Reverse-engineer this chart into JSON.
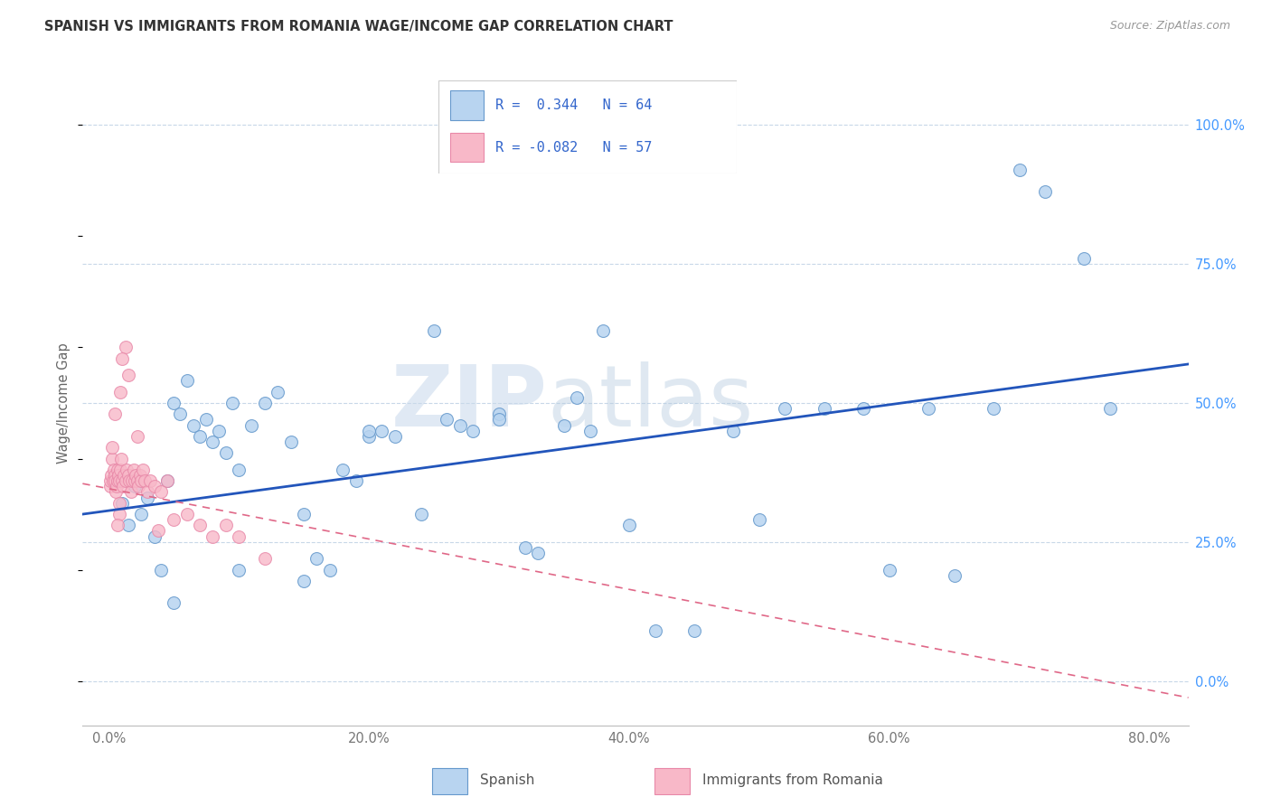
{
  "title": "SPANISH VS IMMIGRANTS FROM ROMANIA WAGE/INCOME GAP CORRELATION CHART",
  "source": "Source: ZipAtlas.com",
  "ylabel": "Wage/Income Gap",
  "watermark_zip": "ZIP",
  "watermark_atlas": "atlas",
  "blue_color_face": "#b8d4f0",
  "blue_color_edge": "#6699cc",
  "pink_color_face": "#f8b8c8",
  "pink_color_edge": "#e888a8",
  "blue_line_color": "#2255bb",
  "pink_line_color": "#e06888",
  "tick_color_right": "#4499ff",
  "tick_color_bottom": "#777777",
  "grid_color": "#c8d8e8",
  "title_color": "#333333",
  "source_color": "#999999",
  "ylabel_color": "#666666",
  "legend_border": "#cccccc",
  "legend_text_color": "#3366cc",
  "bottom_legend_text_color": "#555555",
  "blue_R": 0.344,
  "blue_N": 64,
  "pink_R": -0.082,
  "pink_N": 57,
  "xlim": [
    -2,
    83
  ],
  "ylim": [
    -8,
    108
  ],
  "x_ticks": [
    0,
    20,
    40,
    60,
    80
  ],
  "y_ticks": [
    0,
    25,
    50,
    75,
    100
  ],
  "blue_line_x0": -2,
  "blue_line_x1": 83,
  "blue_line_y0": 30.0,
  "blue_line_y1": 57.0,
  "pink_line_x0": -2,
  "pink_line_x1": 83,
  "pink_line_y0": 35.5,
  "pink_line_y1": -3.0,
  "blue_x": [
    1.0,
    1.5,
    2.0,
    2.5,
    3.0,
    3.5,
    4.0,
    4.5,
    5.0,
    5.5,
    6.0,
    6.5,
    7.0,
    7.5,
    8.0,
    8.5,
    9.0,
    9.5,
    10.0,
    11.0,
    12.0,
    13.0,
    14.0,
    15.0,
    16.0,
    17.0,
    18.0,
    19.0,
    20.0,
    21.0,
    22.0,
    24.0,
    26.0,
    28.0,
    30.0,
    32.0,
    35.0,
    37.0,
    40.0,
    42.0,
    45.0,
    48.0,
    50.0,
    52.0,
    55.0,
    58.0,
    60.0,
    63.0,
    65.0,
    68.0,
    70.0,
    72.0,
    75.0,
    77.0,
    25.0,
    27.0,
    30.0,
    33.0,
    36.0,
    20.0,
    15.0,
    10.0,
    5.0,
    38.0
  ],
  "blue_y": [
    32.0,
    28.0,
    35.0,
    30.0,
    33.0,
    26.0,
    20.0,
    36.0,
    50.0,
    48.0,
    54.0,
    46.0,
    44.0,
    47.0,
    43.0,
    45.0,
    41.0,
    50.0,
    38.0,
    46.0,
    50.0,
    52.0,
    43.0,
    30.0,
    22.0,
    20.0,
    38.0,
    36.0,
    44.0,
    45.0,
    44.0,
    30.0,
    47.0,
    45.0,
    48.0,
    24.0,
    46.0,
    45.0,
    28.0,
    9.0,
    9.0,
    45.0,
    29.0,
    49.0,
    49.0,
    49.0,
    20.0,
    49.0,
    19.0,
    49.0,
    92.0,
    88.0,
    76.0,
    49.0,
    63.0,
    46.0,
    47.0,
    23.0,
    51.0,
    45.0,
    18.0,
    20.0,
    14.0,
    63.0
  ],
  "pink_x": [
    0.1,
    0.15,
    0.2,
    0.25,
    0.3,
    0.35,
    0.4,
    0.45,
    0.5,
    0.55,
    0.6,
    0.65,
    0.7,
    0.75,
    0.8,
    0.85,
    0.9,
    0.95,
    1.0,
    1.1,
    1.2,
    1.3,
    1.4,
    1.5,
    1.6,
    1.7,
    1.8,
    1.9,
    2.0,
    2.1,
    2.2,
    2.3,
    2.4,
    2.5,
    2.6,
    2.8,
    3.0,
    3.2,
    3.5,
    4.0,
    4.5,
    5.0,
    6.0,
    7.0,
    8.0,
    9.0,
    10.0,
    12.0,
    3.8,
    1.3,
    1.5,
    1.0,
    0.9,
    2.2,
    0.8,
    0.7,
    0.5
  ],
  "pink_y": [
    35.0,
    36.0,
    37.0,
    40.0,
    42.0,
    36.0,
    38.0,
    37.0,
    36.0,
    34.0,
    35.0,
    38.0,
    36.0,
    37.0,
    32.0,
    36.0,
    38.0,
    40.0,
    36.0,
    35.0,
    37.0,
    36.0,
    38.0,
    37.0,
    36.0,
    34.0,
    36.0,
    38.0,
    36.0,
    37.0,
    36.0,
    35.0,
    37.0,
    36.0,
    38.0,
    36.0,
    34.0,
    36.0,
    35.0,
    34.0,
    36.0,
    29.0,
    30.0,
    28.0,
    26.0,
    28.0,
    26.0,
    22.0,
    27.0,
    60.0,
    55.0,
    58.0,
    52.0,
    44.0,
    30.0,
    28.0,
    48.0
  ]
}
